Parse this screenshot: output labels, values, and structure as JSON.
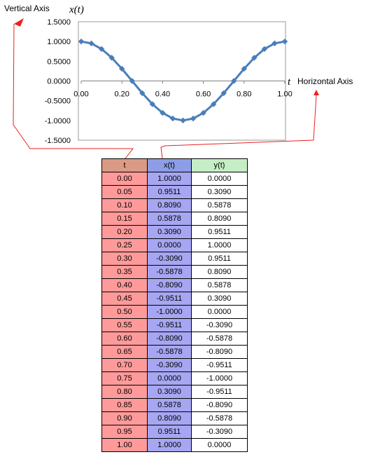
{
  "chart_data": {
    "type": "line",
    "x": [
      0.0,
      0.05,
      0.1,
      0.15,
      0.2,
      0.25,
      0.3,
      0.35,
      0.4,
      0.45,
      0.5,
      0.55,
      0.6,
      0.65,
      0.7,
      0.75,
      0.8,
      0.85,
      0.9,
      0.95,
      1.0
    ],
    "series": [
      {
        "values": [
          1.0,
          0.9511,
          0.809,
          0.5878,
          0.309,
          0.0,
          -0.309,
          -0.5878,
          -0.809,
          -0.9511,
          -1.0,
          -0.9511,
          -0.809,
          -0.5878,
          -0.309,
          0.0,
          0.309,
          0.5878,
          0.809,
          0.9511,
          1.0
        ],
        "color": "#4a7ebb"
      }
    ],
    "title": "",
    "xlabel_var": "t",
    "ylabel_var": "x(t)",
    "xlim": [
      0,
      1
    ],
    "ylim": [
      -1.5,
      1.5
    ],
    "xticks": [
      "0.00",
      "0.20",
      "0.40",
      "0.60",
      "0.80",
      "1.00"
    ],
    "yticks": [
      "1.5000",
      "1.0000",
      "0.5000",
      "0.0000",
      "-0.5000",
      "-1.0000",
      "-1.5000"
    ],
    "grid": false,
    "annotations": {
      "vertical_axis": "Vertical Axis",
      "horizontal_axis": "Horizontal Axis"
    },
    "annotation_color": "#e8231f"
  },
  "table": {
    "headers": [
      "t",
      "x(t)",
      "y(t)"
    ],
    "rows": [
      [
        "0.00",
        "1.0000",
        "0.0000"
      ],
      [
        "0.05",
        "0.9511",
        "0.3090"
      ],
      [
        "0.10",
        "0.8090",
        "0.5878"
      ],
      [
        "0.15",
        "0.5878",
        "0.8090"
      ],
      [
        "0.20",
        "0.3090",
        "0.9511"
      ],
      [
        "0.25",
        "0.0000",
        "1.0000"
      ],
      [
        "0.30",
        "-0.3090",
        "0.9511"
      ],
      [
        "0.35",
        "-0.5878",
        "0.8090"
      ],
      [
        "0.40",
        "-0.8090",
        "0.5878"
      ],
      [
        "0.45",
        "-0.9511",
        "0.3090"
      ],
      [
        "0.50",
        "-1.0000",
        "0.0000"
      ],
      [
        "0.55",
        "-0.9511",
        "-0.3090"
      ],
      [
        "0.60",
        "-0.8090",
        "-0.5878"
      ],
      [
        "0.65",
        "-0.5878",
        "-0.8090"
      ],
      [
        "0.70",
        "-0.3090",
        "-0.9511"
      ],
      [
        "0.75",
        "0.0000",
        "-1.0000"
      ],
      [
        "0.80",
        "0.3090",
        "-0.9511"
      ],
      [
        "0.85",
        "0.5878",
        "-0.8090"
      ],
      [
        "0.90",
        "0.8090",
        "-0.5878"
      ],
      [
        "0.95",
        "0.9511",
        "-0.3090"
      ],
      [
        "1.00",
        "1.0000",
        "0.0000"
      ]
    ]
  }
}
